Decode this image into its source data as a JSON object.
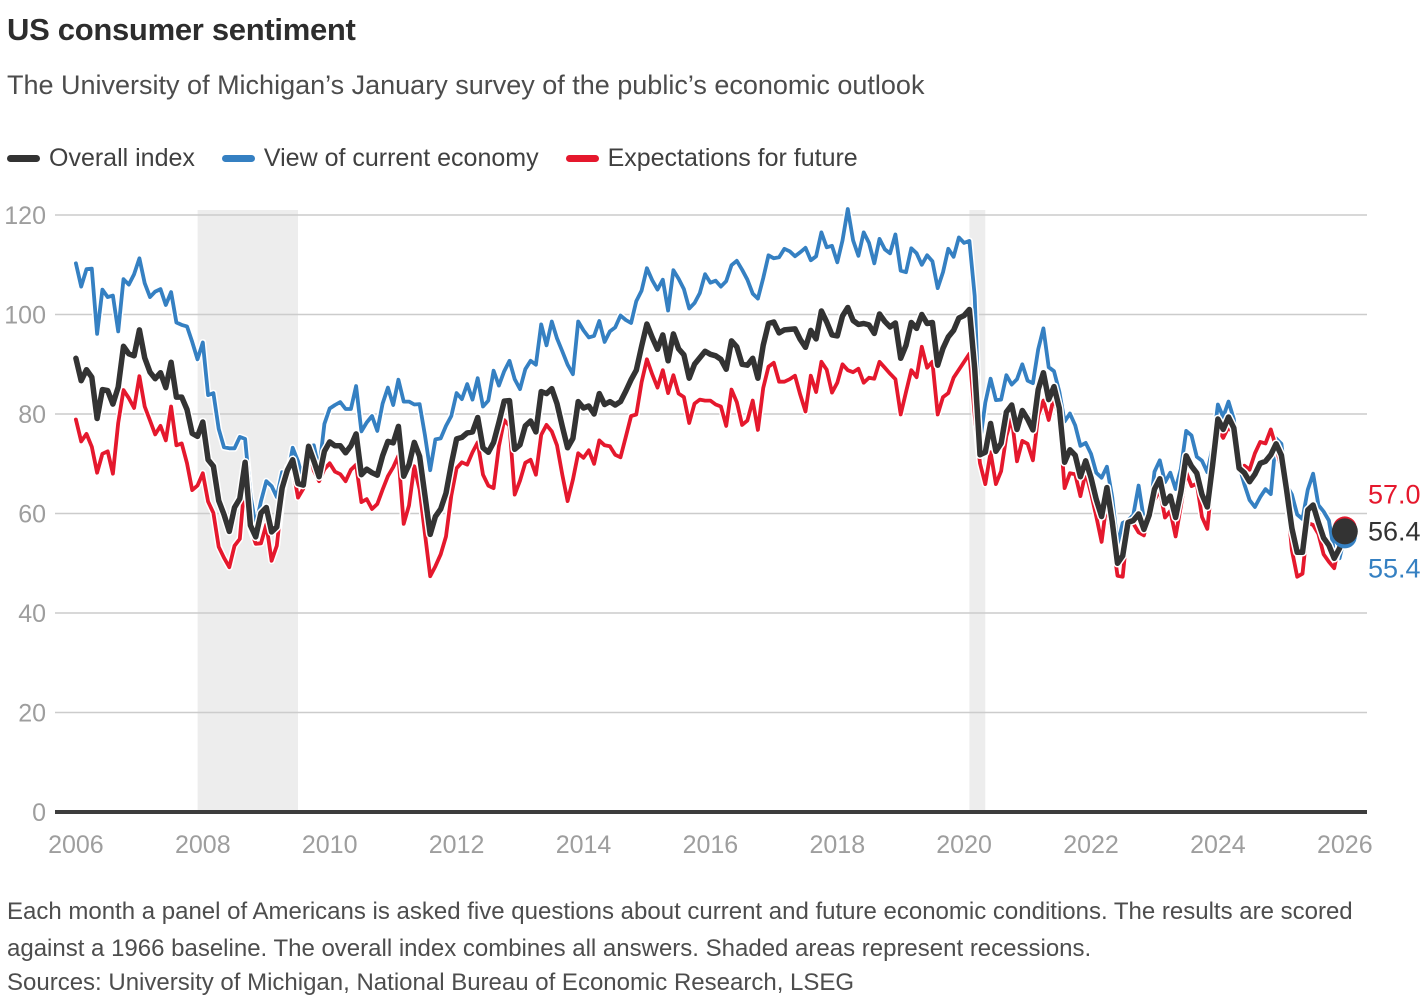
{
  "header": {
    "title": "US consumer sentiment",
    "subtitle": "The University of Michigan’s January survey of the public’s economic outlook"
  },
  "legend": [
    {
      "label": "Overall index",
      "color": "#333333"
    },
    {
      "label": "View of current economy",
      "color": "#3580c2"
    },
    {
      "label": "Expectations for future",
      "color": "#e5182d"
    }
  ],
  "chart_data": {
    "type": "line",
    "title": "US consumer sentiment",
    "x_start": 2006.0,
    "x_step_months": 1,
    "xlim": [
      2005.67,
      2026.35
    ],
    "ylim": [
      0,
      120
    ],
    "xticks": [
      2006,
      2008,
      2010,
      2012,
      2014,
      2016,
      2018,
      2020,
      2022,
      2024,
      2026
    ],
    "yticks": [
      0,
      20,
      40,
      60,
      80,
      100,
      120
    ],
    "grid": "horizontal",
    "grid_color": "#cccccc",
    "axis_color": "#3d3d3d",
    "tick_color": "#9e9e9e",
    "band_color": "#ededed",
    "recessions_note": "shaded areas are NBER recessions",
    "recessions": [
      [
        2007.917,
        2009.5
      ],
      [
        2020.083,
        2020.333
      ]
    ],
    "series": [
      {
        "name": "Overall index",
        "color": "#333333",
        "width": 5.5,
        "values": [
          91.2,
          86.7,
          88.9,
          87.4,
          79.1,
          84.9,
          84.7,
          82.0,
          85.4,
          93.6,
          92.1,
          91.7,
          96.9,
          91.3,
          88.4,
          87.1,
          88.3,
          85.3,
          90.4,
          83.4,
          83.4,
          80.9,
          76.1,
          75.5,
          78.4,
          70.8,
          69.5,
          62.6,
          59.8,
          56.4,
          61.2,
          63.0,
          70.3,
          57.6,
          55.3,
          60.1,
          61.2,
          56.3,
          57.3,
          65.1,
          68.7,
          70.8,
          66.0,
          65.7,
          73.5,
          70.6,
          67.4,
          72.5,
          74.4,
          73.6,
          73.6,
          72.2,
          73.6,
          76.0,
          67.8,
          68.9,
          68.2,
          67.7,
          71.6,
          74.5,
          74.2,
          77.5,
          67.5,
          69.8,
          74.3,
          71.5,
          63.7,
          55.8,
          59.4,
          60.9,
          64.1,
          69.9,
          75.0,
          75.3,
          76.2,
          76.4,
          79.3,
          73.2,
          72.3,
          74.3,
          78.3,
          82.6,
          82.7,
          72.9,
          73.8,
          77.6,
          78.6,
          76.4,
          84.5,
          84.1,
          85.1,
          82.1,
          77.5,
          73.2,
          75.1,
          82.5,
          81.2,
          81.6,
          80.0,
          84.1,
          81.9,
          82.5,
          81.8,
          82.5,
          84.6,
          86.9,
          88.8,
          93.6,
          98.1,
          95.4,
          93.0,
          95.9,
          90.7,
          96.1,
          93.1,
          91.9,
          87.2,
          90.0,
          91.3,
          92.6,
          92.0,
          91.7,
          91.0,
          89.0,
          94.7,
          93.5,
          90.0,
          89.8,
          91.2,
          87.2,
          93.8,
          98.2,
          98.5,
          96.3,
          96.9,
          97.0,
          97.1,
          95.0,
          93.4,
          96.8,
          95.1,
          100.7,
          98.5,
          95.9,
          95.7,
          99.7,
          101.4,
          98.8,
          98.0,
          98.2,
          97.9,
          96.2,
          100.1,
          98.6,
          97.5,
          98.3,
          91.2,
          93.8,
          98.4,
          97.2,
          100.0,
          98.2,
          98.4,
          89.8,
          93.2,
          95.5,
          96.8,
          99.3,
          99.8,
          101.0,
          89.1,
          71.8,
          72.3,
          78.1,
          72.5,
          74.1,
          80.4,
          81.8,
          76.9,
          80.7,
          79.0,
          76.8,
          84.9,
          88.3,
          82.9,
          85.5,
          81.2,
          70.3,
          72.8,
          71.7,
          67.4,
          70.6,
          67.2,
          62.8,
          59.4,
          65.2,
          58.4,
          50.0,
          51.5,
          58.2,
          58.6,
          59.9,
          56.8,
          59.7,
          64.9,
          67.0,
          62.0,
          63.5,
          59.2,
          64.4,
          71.6,
          69.5,
          68.1,
          63.8,
          61.3,
          69.7,
          79.0,
          76.9,
          79.4,
          77.2,
          69.1,
          68.2,
          66.4,
          67.9,
          70.1,
          70.5,
          71.8,
          74.0,
          71.7,
          64.7,
          57.0,
          52.2,
          52.2,
          60.7,
          61.7,
          58.2,
          55.1,
          53.6,
          51.0,
          53.0,
          56.4
        ]
      },
      {
        "name": "View of current economy",
        "color": "#3580c2",
        "width": 3.8,
        "values": [
          110.3,
          105.6,
          109.1,
          109.2,
          96.1,
          105.0,
          103.5,
          103.8,
          96.6,
          107.1,
          106.0,
          108.1,
          111.3,
          106.3,
          103.5,
          104.6,
          105.1,
          101.9,
          104.5,
          98.4,
          97.9,
          97.6,
          94.5,
          91.0,
          94.4,
          83.8,
          84.2,
          77.0,
          73.3,
          73.1,
          73.1,
          75.4,
          75.0,
          63.7,
          57.5,
          62.5,
          66.5,
          65.5,
          63.3,
          68.3,
          67.7,
          73.2,
          70.5,
          66.6,
          73.4,
          73.7,
          68.8,
          78.0,
          81.1,
          81.8,
          82.4,
          81.0,
          81.0,
          85.6,
          76.5,
          78.3,
          79.6,
          76.6,
          82.1,
          85.3,
          81.8,
          86.9,
          82.5,
          82.5,
          81.9,
          82.0,
          75.8,
          68.7,
          74.9,
          75.1,
          77.6,
          79.6,
          84.2,
          83.0,
          86.0,
          82.9,
          87.2,
          81.5,
          82.7,
          88.7,
          85.7,
          88.6,
          90.7,
          87.0,
          85.0,
          89.0,
          90.7,
          89.9,
          98.0,
          93.8,
          98.6,
          95.2,
          92.6,
          89.9,
          88.0,
          98.6,
          96.8,
          95.4,
          95.7,
          98.7,
          94.5,
          96.6,
          97.4,
          99.8,
          98.9,
          98.3,
          102.7,
          104.8,
          109.3,
          106.9,
          105.0,
          107.0,
          100.8,
          108.9,
          107.2,
          105.1,
          101.2,
          102.3,
          104.3,
          108.1,
          106.4,
          106.8,
          105.6,
          106.7,
          109.9,
          110.8,
          109.0,
          107.0,
          104.2,
          103.2,
          107.3,
          111.9,
          111.3,
          111.5,
          113.2,
          112.7,
          111.7,
          112.5,
          113.4,
          110.9,
          111.7,
          116.5,
          113.5,
          113.8,
          110.5,
          114.9,
          121.2,
          114.9,
          111.8,
          116.5,
          114.4,
          110.3,
          115.2,
          113.1,
          112.3,
          116.1,
          108.8,
          108.5,
          113.3,
          112.3,
          110.0,
          111.9,
          110.7,
          105.3,
          108.5,
          113.2,
          111.6,
          115.5,
          114.4,
          114.8,
          103.7,
          74.3,
          82.3,
          87.1,
          82.8,
          82.9,
          87.8,
          85.9,
          87.0,
          90.0,
          86.7,
          86.2,
          93.0,
          97.2,
          89.4,
          88.6,
          84.5,
          78.5,
          80.1,
          77.7,
          73.6,
          74.2,
          72.0,
          68.2,
          67.2,
          69.4,
          63.3,
          53.8,
          58.1,
          58.6,
          59.7,
          65.6,
          58.8,
          59.4,
          68.4,
          70.7,
          66.3,
          68.2,
          64.9,
          69.0,
          76.6,
          75.7,
          71.4,
          70.6,
          68.3,
          73.3,
          81.9,
          79.4,
          82.5,
          79.0,
          69.6,
          65.9,
          62.7,
          61.3,
          63.3,
          64.9,
          63.9,
          75.1,
          74.0,
          65.7,
          63.8,
          59.8,
          58.9,
          64.8,
          68.0,
          61.7,
          60.4,
          58.6,
          52.3,
          51.0,
          55.4
        ]
      },
      {
        "name": "Expectations for future",
        "color": "#e5182d",
        "width": 3.8,
        "values": [
          78.9,
          74.5,
          76.0,
          73.4,
          68.2,
          72.0,
          72.5,
          68.0,
          78.2,
          84.8,
          83.2,
          81.2,
          87.6,
          81.5,
          78.7,
          75.9,
          77.6,
          74.7,
          81.5,
          73.7,
          74.1,
          70.1,
          64.7,
          65.6,
          68.1,
          62.4,
          60.1,
          53.3,
          51.1,
          49.2,
          53.5,
          54.9,
          67.2,
          57.0,
          53.9,
          54.0,
          57.8,
          50.5,
          53.5,
          63.1,
          69.4,
          69.2,
          63.2,
          65.0,
          73.5,
          68.6,
          66.5,
          68.9,
          70.1,
          68.4,
          67.9,
          66.5,
          68.8,
          69.8,
          62.3,
          62.9,
          60.9,
          61.9,
          64.8,
          67.5,
          69.3,
          71.6,
          57.9,
          61.6,
          69.5,
          64.8,
          56.0,
          47.4,
          49.4,
          51.8,
          55.4,
          63.6,
          69.1,
          70.3,
          69.8,
          72.3,
          74.3,
          67.8,
          65.6,
          65.1,
          73.5,
          78.8,
          77.6,
          63.8,
          66.6,
          70.2,
          70.8,
          67.8,
          75.8,
          77.8,
          76.5,
          73.7,
          67.8,
          62.5,
          66.8,
          72.1,
          71.2,
          72.7,
          70.0,
          74.7,
          73.7,
          73.5,
          71.8,
          71.3,
          75.4,
          79.6,
          79.9,
          86.4,
          91.0,
          88.0,
          85.3,
          88.8,
          84.2,
          87.8,
          84.1,
          83.4,
          78.2,
          82.1,
          82.9,
          82.7,
          82.7,
          81.9,
          81.5,
          77.6,
          84.9,
          82.4,
          77.8,
          78.7,
          82.7,
          76.8,
          85.2,
          89.5,
          90.3,
          86.5,
          86.5,
          87.0,
          87.7,
          83.9,
          80.5,
          87.7,
          84.4,
          90.5,
          88.9,
          84.3,
          86.3,
          90.0,
          88.8,
          88.4,
          89.1,
          86.3,
          87.3,
          87.1,
          90.5,
          89.3,
          88.1,
          87.0,
          79.9,
          84.4,
          88.8,
          87.4,
          93.5,
          89.3,
          90.5,
          79.9,
          83.4,
          84.2,
          87.3,
          88.9,
          90.5,
          92.1,
          79.7,
          70.1,
          65.9,
          72.3,
          65.9,
          68.5,
          75.6,
          79.2,
          70.5,
          74.6,
          74.0,
          70.7,
          79.7,
          82.7,
          78.8,
          83.5,
          79.0,
          65.1,
          68.1,
          67.9,
          63.5,
          68.3,
          64.1,
          59.4,
          54.3,
          62.5,
          55.2,
          47.5,
          47.3,
          58.0,
          58.0,
          56.2,
          55.6,
          59.9,
          62.7,
          64.7,
          59.2,
          60.5,
          55.4,
          61.5,
          68.3,
          65.5,
          66.0,
          59.3,
          56.9,
          67.4,
          77.1,
          75.2,
          77.4,
          76.0,
          68.8,
          69.6,
          68.8,
          72.1,
          74.4,
          74.1,
          76.9,
          73.3,
          69.3,
          64.0,
          52.6,
          47.3,
          47.9,
          58.1,
          57.7,
          55.9,
          51.8,
          50.3,
          49.0,
          54.3,
          57.0
        ]
      }
    ],
    "end_labels": [
      {
        "text": "57.0",
        "value": 57.0,
        "color": "#e5182d",
        "series": "Expectations for future"
      },
      {
        "text": "56.4",
        "value": 56.4,
        "color": "#333333",
        "series": "Overall index"
      },
      {
        "text": "55.4",
        "value": 55.4,
        "color": "#3580c2",
        "series": "View of current economy"
      }
    ]
  },
  "footnote": {
    "text": "Each month a panel of Americans is asked five questions about current and future economic conditions. The results are scored against a 1966 baseline. The overall index combines all answers. Shaded areas represent recessions.",
    "sources": "Sources: University of Michigan, National Bureau of Economic Research, LSEG"
  }
}
